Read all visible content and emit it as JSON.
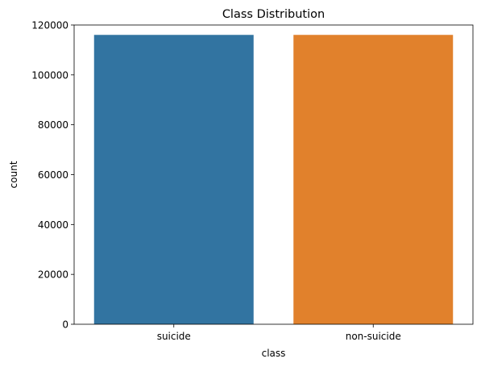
{
  "chart_data": {
    "type": "bar",
    "title": "Class Distribution",
    "xlabel": "class",
    "ylabel": "count",
    "categories": [
      "suicide",
      "non-suicide"
    ],
    "values": [
      116037,
      116037
    ],
    "colors": [
      "#3274a1",
      "#e1812c"
    ],
    "ylim": [
      0,
      120000
    ],
    "yticks": [
      0,
      20000,
      40000,
      60000,
      80000,
      100000,
      120000
    ],
    "ytick_labels": [
      "0",
      "20000",
      "40000",
      "60000",
      "80000",
      "100000",
      "120000"
    ],
    "grid": false,
    "legend": "none"
  }
}
